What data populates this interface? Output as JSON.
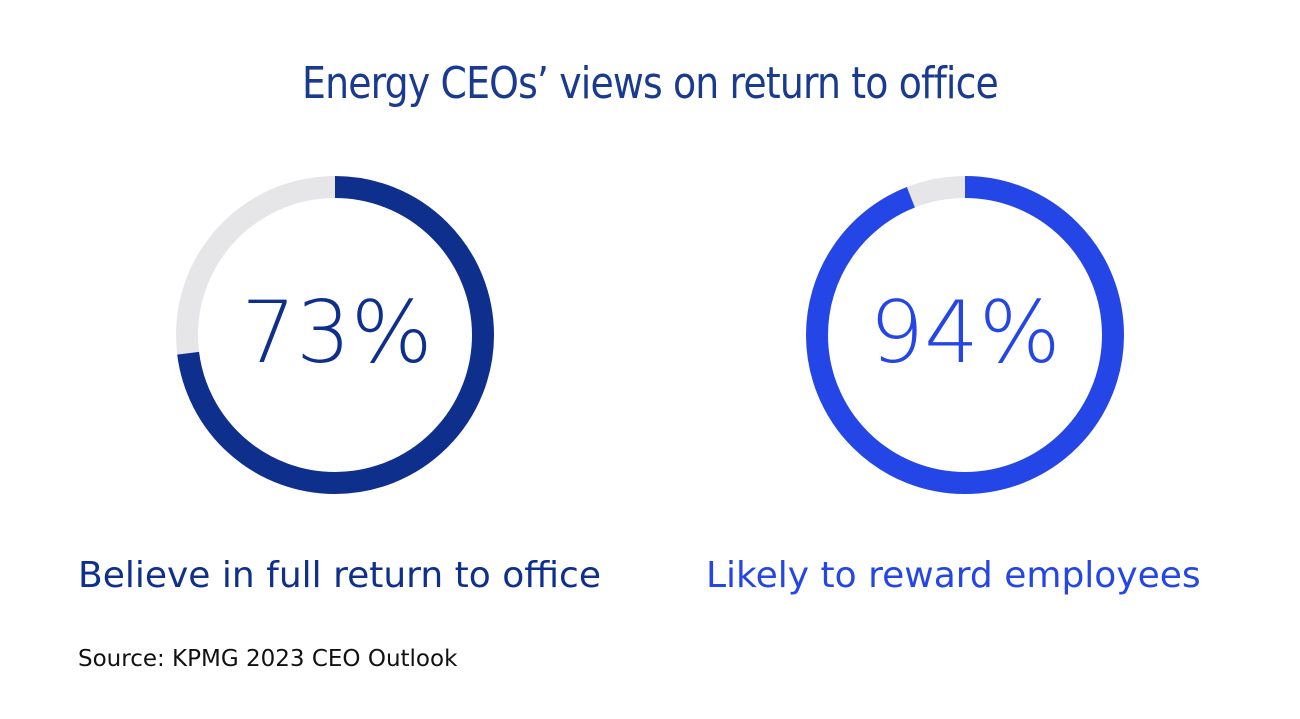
{
  "title": "Energy CEOs’ views on return to office",
  "source": "Source: KPMG 2023 CEO Outlook",
  "colors": {
    "title": "#1a3a8f",
    "track": "#e6e6e8",
    "donut_1": "#0f2f8c",
    "donut_2": "#2546e6"
  },
  "chart_data": [
    {
      "type": "pie",
      "style": "donut",
      "value": 73,
      "max": 100,
      "value_label": "73%",
      "label": "Believe in full return to office",
      "color": "#0f2f8c"
    },
    {
      "type": "pie",
      "style": "donut",
      "value": 94,
      "max": 100,
      "value_label": "94%",
      "label": "Likely to reward employees",
      "color": "#2546e6"
    }
  ]
}
